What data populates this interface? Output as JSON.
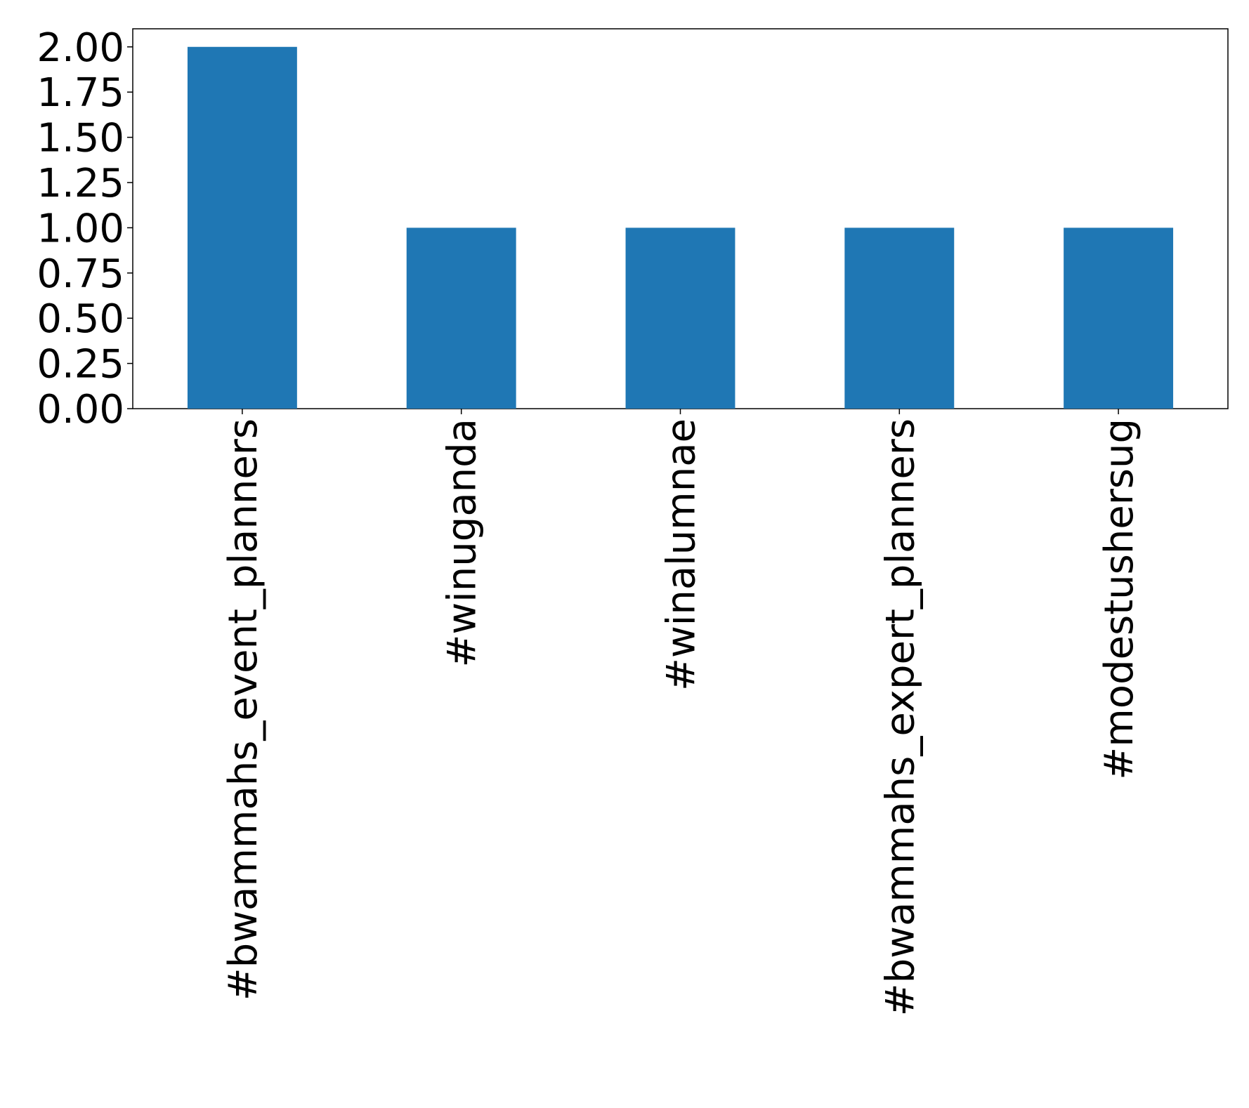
{
  "chart_data": {
    "type": "bar",
    "categories": [
      "#bwammahs_event_planners",
      "#winuganda",
      "#winalumnae",
      "#bwammahs_expert_planners",
      "#modestushersug"
    ],
    "values": [
      2,
      1,
      1,
      1,
      1
    ],
    "color": "#1f77b4",
    "ylim": [
      0,
      2.1
    ],
    "yticks": [
      {
        "value": 0,
        "label": "0.00"
      },
      {
        "value": 0.25,
        "label": "0.25"
      },
      {
        "value": 0.5,
        "label": "0.50"
      },
      {
        "value": 0.75,
        "label": "0.75"
      },
      {
        "value": 1,
        "label": "1.00"
      },
      {
        "value": 1.25,
        "label": "1.25"
      },
      {
        "value": 1.5,
        "label": "1.50"
      },
      {
        "value": 1.75,
        "label": "1.75"
      },
      {
        "value": 2,
        "label": "2.00"
      }
    ],
    "grid": false
  }
}
